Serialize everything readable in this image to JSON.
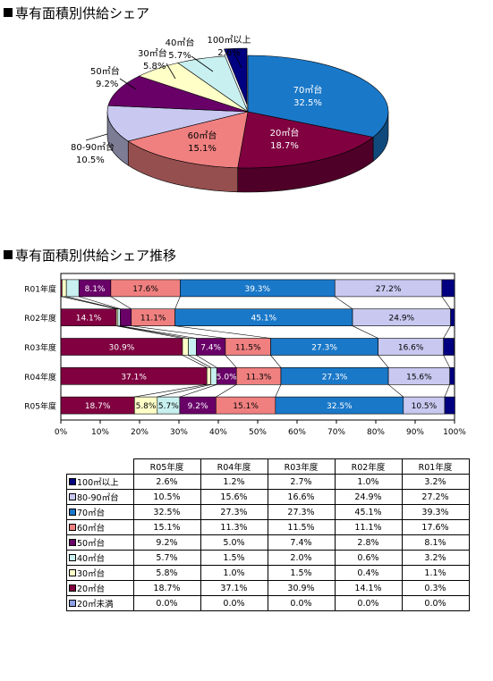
{
  "titles": {
    "pie": "専有面積別供給シェア",
    "bar": "専有面積別供給シェア推移"
  },
  "colors": {
    "100": "#000080",
    "80": "#c8c8f0",
    "70": "#1a78c8",
    "60": "#f08080",
    "50": "#680068",
    "40": "#c8f0f0",
    "30": "#ffffc8",
    "20": "#800040",
    "u20": "#8ca0e6"
  },
  "chart_data": [
    {
      "type": "pie",
      "title": "専有面積別供給シェア",
      "three_d": true,
      "slices": [
        {
          "key": "100",
          "label": "100㎡以上",
          "value": 2.6,
          "value_label": "2.6%"
        },
        {
          "key": "70",
          "label": "70㎡台",
          "value": 32.5,
          "value_label": "32.5%"
        },
        {
          "key": "20",
          "label": "20㎡台",
          "value": 18.7,
          "value_label": "18.7%"
        },
        {
          "key": "60",
          "label": "60㎡台",
          "value": 15.1,
          "value_label": "15.1%"
        },
        {
          "key": "80",
          "label": "80-90㎡台",
          "value": 10.5,
          "value_label": "10.5%"
        },
        {
          "key": "50",
          "label": "50㎡台",
          "value": 9.2,
          "value_label": "9.2%"
        },
        {
          "key": "30",
          "label": "30㎡台",
          "value": 5.8,
          "value_label": "5.8%"
        },
        {
          "key": "40",
          "label": "40㎡台",
          "value": 5.7,
          "value_label": "5.7%"
        }
      ]
    },
    {
      "type": "bar",
      "stacked": "100%",
      "orientation": "horizontal",
      "title": "専有面積別供給シェア推移",
      "categories": [
        "R01年度",
        "R02年度",
        "R03年度",
        "R04年度",
        "R05年度"
      ],
      "xticks": [
        "0%",
        "10%",
        "20%",
        "30%",
        "40%",
        "50%",
        "60%",
        "70%",
        "80%",
        "90%",
        "100%"
      ],
      "xlim": [
        0,
        100
      ],
      "series": [
        {
          "key": "u20",
          "name": "20㎡未満",
          "values": [
            0.0,
            0.0,
            0.0,
            0.0,
            0.0
          ]
        },
        {
          "key": "20",
          "name": "20㎡台",
          "values": [
            0.3,
            14.1,
            30.9,
            37.1,
            18.7
          ]
        },
        {
          "key": "30",
          "name": "30㎡台",
          "values": [
            1.1,
            0.4,
            1.5,
            1.0,
            5.8
          ]
        },
        {
          "key": "40",
          "name": "40㎡台",
          "values": [
            3.2,
            0.6,
            2.0,
            1.5,
            5.7
          ]
        },
        {
          "key": "50",
          "name": "50㎡台",
          "values": [
            8.1,
            2.8,
            7.4,
            5.0,
            9.2
          ]
        },
        {
          "key": "60",
          "name": "60㎡台",
          "values": [
            17.6,
            11.1,
            11.5,
            11.3,
            15.1
          ]
        },
        {
          "key": "70",
          "name": "70㎡台",
          "values": [
            39.3,
            45.1,
            27.3,
            27.3,
            32.5
          ]
        },
        {
          "key": "80",
          "name": "80-90㎡台",
          "values": [
            27.2,
            24.9,
            16.6,
            15.6,
            10.5
          ]
        },
        {
          "key": "100",
          "name": "100㎡以上",
          "values": [
            3.2,
            1.0,
            2.7,
            1.2,
            2.6
          ]
        }
      ],
      "labels": [
        [
          "",
          "",
          "",
          "",
          "8.1%",
          "17.6%",
          "39.3%",
          "27.2%",
          ""
        ],
        [
          "",
          "14.1%",
          "",
          "",
          "",
          "11.1%",
          "45.1%",
          "24.9%",
          ""
        ],
        [
          "",
          "30.9%",
          "",
          "",
          "7.4%",
          "11.5%",
          "27.3%",
          "16.6%",
          ""
        ],
        [
          "",
          "37.1%",
          "",
          "",
          "5.0%",
          "11.3%",
          "27.3%",
          "15.6%",
          ""
        ],
        [
          "",
          "18.7%",
          "5.8%",
          "5.7%",
          "9.2%",
          "15.1%",
          "32.5%",
          "10.5%",
          ""
        ]
      ]
    },
    {
      "type": "table",
      "columns": [
        "R05年度",
        "R04年度",
        "R03年度",
        "R02年度",
        "R01年度"
      ],
      "rows": [
        {
          "key": "100",
          "label": "100㎡以上",
          "values": [
            "2.6%",
            "1.2%",
            "2.7%",
            "1.0%",
            "3.2%"
          ]
        },
        {
          "key": "80",
          "label": "80-90㎡台",
          "values": [
            "10.5%",
            "15.6%",
            "16.6%",
            "24.9%",
            "27.2%"
          ]
        },
        {
          "key": "70",
          "label": "70㎡台",
          "values": [
            "32.5%",
            "27.3%",
            "27.3%",
            "45.1%",
            "39.3%"
          ]
        },
        {
          "key": "60",
          "label": "60㎡台",
          "values": [
            "15.1%",
            "11.3%",
            "11.5%",
            "11.1%",
            "17.6%"
          ]
        },
        {
          "key": "50",
          "label": "50㎡台",
          "values": [
            "9.2%",
            "5.0%",
            "7.4%",
            "2.8%",
            "8.1%"
          ]
        },
        {
          "key": "40",
          "label": "40㎡台",
          "values": [
            "5.7%",
            "1.5%",
            "2.0%",
            "0.6%",
            "3.2%"
          ]
        },
        {
          "key": "30",
          "label": "30㎡台",
          "values": [
            "5.8%",
            "1.0%",
            "1.5%",
            "0.4%",
            "1.1%"
          ]
        },
        {
          "key": "20",
          "label": "20㎡台",
          "values": [
            "18.7%",
            "37.1%",
            "30.9%",
            "14.1%",
            "0.3%"
          ]
        },
        {
          "key": "u20",
          "label": "20㎡未満",
          "values": [
            "0.0%",
            "0.0%",
            "0.0%",
            "0.0%",
            "0.0%"
          ]
        }
      ]
    }
  ]
}
